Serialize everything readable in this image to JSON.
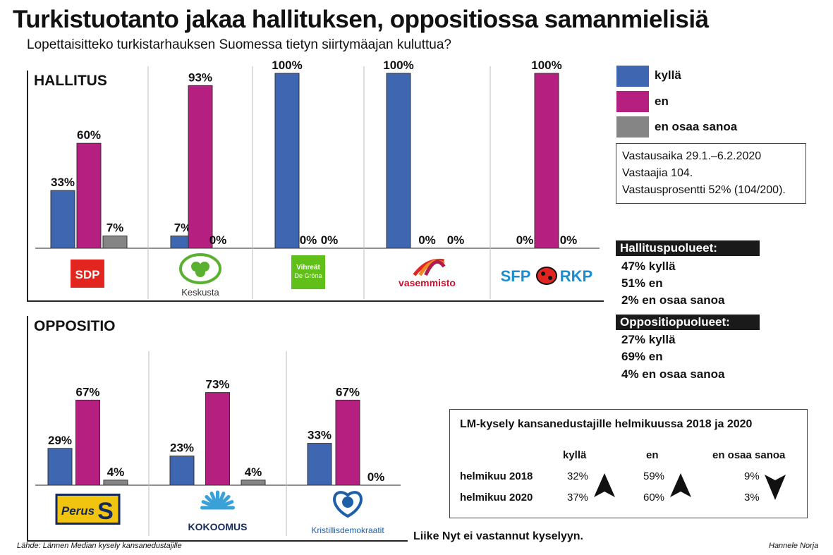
{
  "title": "Turkistuotanto jakaa hallituksen, oppositiossa samanmielisiä",
  "subtitle": "Lopettaisitteko turkistarhauksen Suomessa tietyn siirtymäajan kuluttua?",
  "colors": {
    "kylla": "#3f67b1",
    "en": "#b51f80",
    "eos": "#858585"
  },
  "legend": [
    {
      "key": "kylla",
      "label": "kyllä"
    },
    {
      "key": "en",
      "label": "en"
    },
    {
      "key": "eos",
      "label": "en osaa sanoa"
    }
  ],
  "info": {
    "line1": "Vastausaika 29.1.–6.2.2020",
    "line2": "Vastaajia 104.",
    "line3": "Vastausprosentti 52% (104/200)."
  },
  "summary": {
    "gov_header": "Hallituspuolueet:",
    "gov_lines": [
      "47% kyllä",
      "51% en",
      "2% en osaa sanoa"
    ],
    "opp_header": "Oppositiopuolueet:",
    "opp_lines": [
      "27% kyllä",
      "69% en",
      "4% en osaa sanoa"
    ]
  },
  "lm_table": {
    "title": "LM-kysely kansanedustajille helmikuussa 2018 ja 2020",
    "columns": [
      "kyllä",
      "en",
      "en osaa sanoa"
    ],
    "rows": [
      {
        "label": "helmikuu 2018",
        "values": [
          "32%",
          "59%",
          "9%"
        ]
      },
      {
        "label": "helmikuu 2020",
        "values": [
          "37%",
          "60%",
          "3%"
        ]
      }
    ],
    "trends": [
      "up",
      "up",
      "down"
    ]
  },
  "footer_note": "Liike Nyt ei vastannut kyselyyn.",
  "source": "Lähde: Lännen Median kysely kansanedustajille",
  "author": "Hannele Norja",
  "chart_data": [
    {
      "type": "bar",
      "title": "HALLITUS",
      "categories": [
        "SDP",
        "Keskusta",
        "Vihreät De Gröna",
        "vasemmisto",
        "SFP RKP"
      ],
      "logos": [
        {
          "text": "SDP"
        },
        {
          "text": "Keskusta"
        },
        {
          "text": "Vihreät",
          "text2": "De Gröna"
        },
        {
          "text": "vasemmisto"
        },
        {
          "text": "SFP",
          "text2": "RKP"
        }
      ],
      "series": [
        {
          "name": "kyllä",
          "values": [
            33,
            7,
            100,
            100,
            0
          ]
        },
        {
          "name": "en",
          "values": [
            60,
            93,
            0,
            0,
            100
          ]
        },
        {
          "name": "en osaa sanoa",
          "values": [
            7,
            0,
            0,
            0,
            0
          ]
        }
      ],
      "ylim": [
        0,
        100
      ]
    },
    {
      "type": "bar",
      "title": "OPPOSITIO",
      "categories": [
        "Perus",
        "KOKOOMUS",
        "Kristillisdemokraatit"
      ],
      "logos": [
        {
          "text": "Perus",
          "text2": "S"
        },
        {
          "text": "KOKOOMUS"
        },
        {
          "text": "Kristillisdemokraatit"
        }
      ],
      "series": [
        {
          "name": "kyllä",
          "values": [
            29,
            23,
            33
          ]
        },
        {
          "name": "en",
          "values": [
            67,
            73,
            67
          ]
        },
        {
          "name": "en osaa sanoa",
          "values": [
            4,
            4,
            0
          ]
        }
      ],
      "ylim": [
        0,
        100
      ]
    }
  ]
}
